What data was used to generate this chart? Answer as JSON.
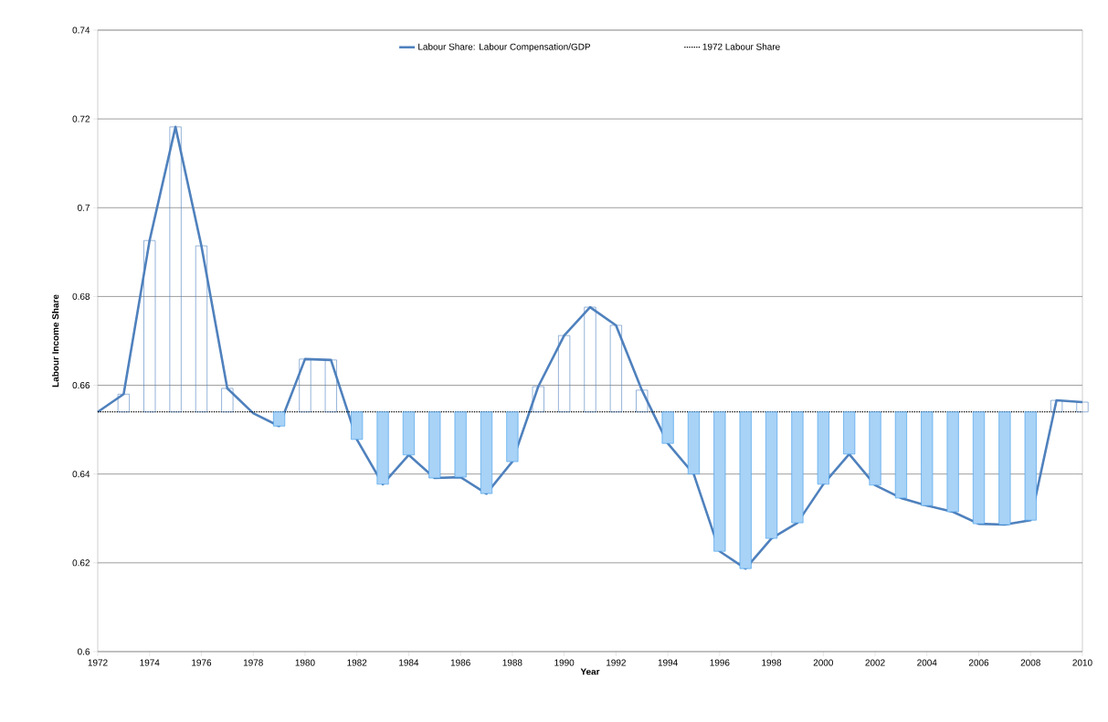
{
  "chart_data": {
    "type": "line",
    "xlabel": "Year",
    "ylabel": "Labour Income Share",
    "x": [
      1972,
      1973,
      1974,
      1975,
      1976,
      1977,
      1978,
      1979,
      1980,
      1981,
      1982,
      1983,
      1984,
      1985,
      1986,
      1987,
      1988,
      1989,
      1990,
      1991,
      1992,
      1993,
      1994,
      1995,
      1996,
      1997,
      1998,
      1999,
      2000,
      2001,
      2002,
      2003,
      2004,
      2005,
      2006,
      2007,
      2008,
      2009,
      2010
    ],
    "series": [
      {
        "name": "Labour Share: Labour Compensation/GDP",
        "color": "#4f81bd",
        "line_style": "solid",
        "values": [
          0.654,
          0.658,
          0.6926,
          0.7182,
          0.6914,
          0.6593,
          0.6537,
          0.6508,
          0.6659,
          0.6657,
          0.6478,
          0.6377,
          0.6443,
          0.6391,
          0.6393,
          0.6356,
          0.6428,
          0.6597,
          0.6712,
          0.6776,
          0.6735,
          0.6589,
          0.6469,
          0.64,
          0.6226,
          0.6187,
          0.6255,
          0.629,
          0.6377,
          0.6445,
          0.6375,
          0.6346,
          0.6329,
          0.6315,
          0.6288,
          0.6286,
          0.6296,
          0.6566,
          0.6562
        ]
      },
      {
        "type": "bar",
        "colors": [
          "#4f81bd",
          "#4f81bd",
          "#4f81bd",
          "#4f81bd",
          "#4f81bd",
          "#4f81bd",
          "#4f81bd",
          "#3d9be9",
          "#4f81bd",
          "#4f81bd",
          "#3d9be9",
          "#3d9be9",
          "#3d9be9",
          "#3d9be9",
          "#3d9be9",
          "#3d9be9",
          "#3d9be9",
          "#4f81bd",
          "#4f81bd",
          "#4f81bd",
          "#4f81bd",
          "#4f81bd",
          "#3d9be9",
          "#3d9be9",
          "#3d9be9",
          "#3d9be9",
          "#3d9be9",
          "#3d9be9",
          "#3d9be9",
          "#3d9be9",
          "#3d9be9",
          "#3d9be9",
          "#3d9be9",
          "#3d9be9",
          "#3d9be9",
          "#3d9be9",
          "#3d9be9",
          "#4f81bd",
          "#4f81bd"
        ],
        "base": [
          null,
          0.654,
          0.654,
          0.654,
          0.654,
          0.654,
          null,
          0.654,
          0.654,
          0.654,
          0.654,
          0.654,
          0.654,
          0.654,
          0.654,
          0.654,
          0.654,
          0.654,
          0.654,
          0.654,
          0.654,
          0.654,
          0.654,
          0.654,
          0.654,
          0.654,
          0.654,
          0.654,
          0.654,
          0.654,
          0.654,
          0.654,
          0.654,
          0.654,
          0.654,
          0.654,
          0.654,
          0.654,
          0.654
        ],
        "values": [
          null,
          0.004,
          0.0386,
          0.0642,
          0.0374,
          0.0053,
          null,
          -0.0032,
          0.0119,
          0.0117,
          -0.0062,
          -0.0163,
          -0.0097,
          -0.0149,
          -0.0147,
          -0.0184,
          -0.0112,
          0.0057,
          0.0172,
          0.0236,
          0.0195,
          0.0049,
          -0.0071,
          -0.014,
          -0.0314,
          -0.0353,
          -0.0285,
          -0.025,
          -0.0163,
          -0.0095,
          -0.0165,
          -0.0194,
          -0.0211,
          -0.0225,
          -0.0252,
          -0.0254,
          -0.0244,
          0.0026,
          0.0022
        ]
      }
    ],
    "ref_lines": [
      {
        "axis": "y",
        "value": 0.654,
        "label": "1972 Labour Share",
        "color": "#000000",
        "line_style": "dotted"
      }
    ],
    "xlim": [
      1972,
      2010
    ],
    "xticks": [
      1972,
      1974,
      1976,
      1978,
      1980,
      1982,
      1984,
      1986,
      1988,
      1990,
      1992,
      1994,
      1996,
      1998,
      2000,
      2002,
      2004,
      2006,
      2008,
      2010
    ],
    "ylim": [
      0.6,
      0.74
    ],
    "yticks": [
      0.6,
      0.62,
      0.64,
      0.66,
      0.68,
      0.7,
      0.72,
      0.74
    ],
    "grid": "y",
    "legend": "top"
  }
}
